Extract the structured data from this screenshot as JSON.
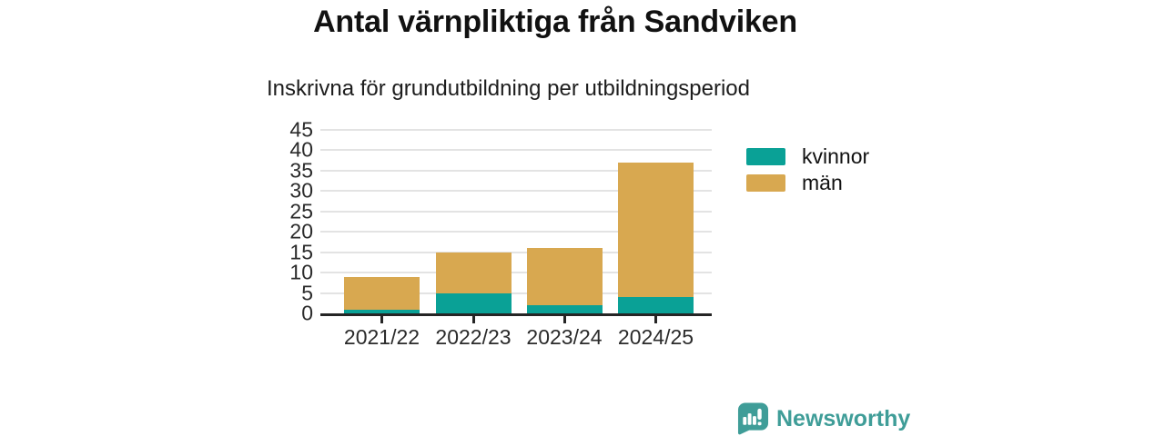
{
  "title": "Antal värnpliktiga från Sandviken",
  "subtitle": "Inskrivna för grundutbildning per utbildningsperiod",
  "branding": {
    "text": "Newsworthy",
    "logo": "newsworthy-speech-bubble-barchart-icon",
    "color": "#3f9d98"
  },
  "colors": {
    "kvinnor": "#0aa196",
    "man": "#d8a850",
    "grid": "#e3e3e3",
    "axis": "#252525",
    "text": "#1c1c1c"
  },
  "chart_data": {
    "type": "bar",
    "stacked": true,
    "title": "Antal värnpliktiga från Sandviken",
    "subtitle": "Inskrivna för grundutbildning per utbildningsperiod",
    "categories": [
      "2021/22",
      "2022/23",
      "2023/24",
      "2024/25"
    ],
    "series": [
      {
        "name": "kvinnor",
        "color": "#0aa196",
        "values": [
          1,
          5,
          2,
          4
        ]
      },
      {
        "name": "män",
        "color": "#d8a850",
        "values": [
          8,
          10,
          14,
          33
        ]
      }
    ],
    "totals": [
      9,
      15,
      16,
      37
    ],
    "xlabel": "",
    "ylabel": "",
    "ylim": [
      0,
      45
    ],
    "yticks": [
      0,
      5,
      10,
      15,
      20,
      25,
      30,
      35,
      40,
      45
    ],
    "grid": true,
    "legend_position": "right"
  }
}
